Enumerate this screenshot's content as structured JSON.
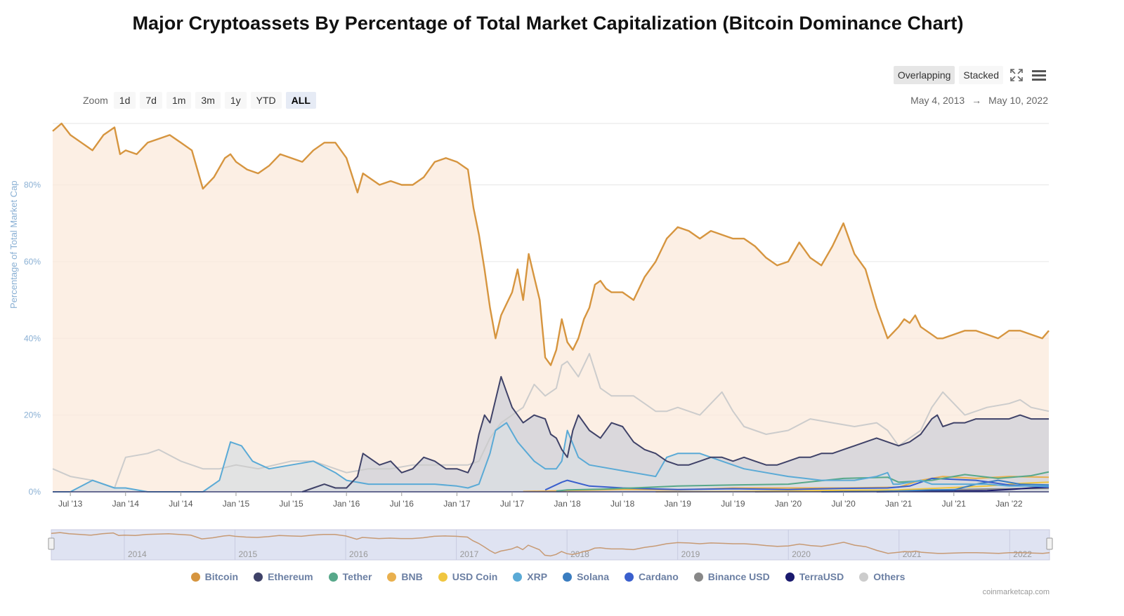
{
  "title": "Major Cryptoassets By Percentage of Total Market Capitalization (Bitcoin Dominance Chart)",
  "zoom": {
    "label": "Zoom",
    "buttons": [
      "1d",
      "7d",
      "1m",
      "3m",
      "1y",
      "YTD",
      "ALL"
    ],
    "active": "ALL"
  },
  "modes": {
    "overlapping": "Overlapping",
    "stacked": "Stacked",
    "active": "Overlapping"
  },
  "icons": {
    "fullscreen": "fullscreen-icon",
    "menu": "hamburger-menu-icon"
  },
  "range": {
    "from": "May 4, 2013",
    "arrow": "→",
    "to": "May 10, 2022"
  },
  "credit": "coinmarketcap.com",
  "chart_data": {
    "type": "area",
    "ylabel": "Percentage of Total Market Cap",
    "ylim": [
      0,
      100
    ],
    "yticks": [
      "0%",
      "20%",
      "40%",
      "60%",
      "80%"
    ],
    "ytick_values": [
      0,
      20,
      40,
      60,
      80
    ],
    "xlim": [
      2013.34,
      2022.36
    ],
    "xticks": [
      {
        "label": "Jul '13",
        "x": 2013.5
      },
      {
        "label": "Jan '14",
        "x": 2014.0
      },
      {
        "label": "Jul '14",
        "x": 2014.5
      },
      {
        "label": "Jan '15",
        "x": 2015.0
      },
      {
        "label": "Jul '15",
        "x": 2015.5
      },
      {
        "label": "Jan '16",
        "x": 2016.0
      },
      {
        "label": "Jul '16",
        "x": 2016.5
      },
      {
        "label": "Jan '17",
        "x": 2017.0
      },
      {
        "label": "Jul '17",
        "x": 2017.5
      },
      {
        "label": "Jan '18",
        "x": 2018.0
      },
      {
        "label": "Jul '18",
        "x": 2018.5
      },
      {
        "label": "Jan '19",
        "x": 2019.0
      },
      {
        "label": "Jul '19",
        "x": 2019.5
      },
      {
        "label": "Jan '20",
        "x": 2020.0
      },
      {
        "label": "Jul '20",
        "x": 2020.5
      },
      {
        "label": "Jan '21",
        "x": 2021.0
      },
      {
        "label": "Jul '21",
        "x": 2021.5
      },
      {
        "label": "Jan '22",
        "x": 2022.0
      }
    ],
    "navigator_labels": [
      {
        "label": "2014",
        "x": 2014.0
      },
      {
        "label": "2015",
        "x": 2015.0
      },
      {
        "label": "2016",
        "x": 2016.0
      },
      {
        "label": "2017",
        "x": 2017.0
      },
      {
        "label": "2018",
        "x": 2018.0
      },
      {
        "label": "2019",
        "x": 2019.0
      },
      {
        "label": "2020",
        "x": 2020.0
      },
      {
        "label": "2021",
        "x": 2021.0
      },
      {
        "label": "2022",
        "x": 2022.0
      }
    ],
    "grid": true,
    "legend_position": "bottom",
    "series": [
      {
        "name": "Bitcoin",
        "color": "#d6953f",
        "fill": "#fbeadb",
        "x": [
          2013.34,
          2013.42,
          2013.5,
          2013.6,
          2013.7,
          2013.8,
          2013.9,
          2013.95,
          2014.0,
          2014.1,
          2014.2,
          2014.3,
          2014.4,
          2014.5,
          2014.6,
          2014.7,
          2014.8,
          2014.9,
          2014.95,
          2015.0,
          2015.1,
          2015.2,
          2015.3,
          2015.4,
          2015.5,
          2015.6,
          2015.7,
          2015.8,
          2015.9,
          2016.0,
          2016.1,
          2016.15,
          2016.2,
          2016.3,
          2016.4,
          2016.5,
          2016.6,
          2016.7,
          2016.8,
          2016.9,
          2017.0,
          2017.1,
          2017.15,
          2017.2,
          2017.25,
          2017.3,
          2017.35,
          2017.4,
          2017.45,
          2017.5,
          2017.55,
          2017.6,
          2017.65,
          2017.7,
          2017.75,
          2017.8,
          2017.85,
          2017.9,
          2017.95,
          2018.0,
          2018.05,
          2018.1,
          2018.15,
          2018.2,
          2018.25,
          2018.3,
          2018.35,
          2018.4,
          2018.5,
          2018.6,
          2018.7,
          2018.8,
          2018.9,
          2019.0,
          2019.1,
          2019.2,
          2019.3,
          2019.4,
          2019.5,
          2019.6,
          2019.7,
          2019.8,
          2019.9,
          2020.0,
          2020.1,
          2020.2,
          2020.3,
          2020.4,
          2020.5,
          2020.6,
          2020.7,
          2020.8,
          2020.9,
          2021.0,
          2021.05,
          2021.1,
          2021.15,
          2021.2,
          2021.3,
          2021.35,
          2021.4,
          2021.5,
          2021.6,
          2021.7,
          2021.8,
          2021.9,
          2022.0,
          2022.1,
          2022.2,
          2022.3,
          2022.36
        ],
        "values": [
          94,
          96,
          93,
          91,
          89,
          93,
          95,
          88,
          89,
          88,
          91,
          92,
          93,
          91,
          89,
          79,
          82,
          87,
          88,
          86,
          84,
          83,
          85,
          88,
          87,
          86,
          89,
          91,
          91,
          87,
          78,
          83,
          82,
          80,
          81,
          80,
          80,
          82,
          86,
          87,
          86,
          84,
          74,
          67,
          58,
          48,
          40,
          46,
          49,
          52,
          58,
          50,
          62,
          56,
          50,
          35,
          33,
          37,
          45,
          39,
          37,
          40,
          45,
          48,
          54,
          55,
          53,
          52,
          52,
          50,
          56,
          60,
          66,
          69,
          68,
          66,
          68,
          67,
          66,
          66,
          64,
          61,
          59,
          60,
          65,
          61,
          59,
          64,
          70,
          62,
          58,
          48,
          40,
          43,
          45,
          44,
          46,
          43,
          41,
          40,
          40,
          41,
          42,
          42,
          41,
          40,
          42,
          42,
          41,
          40,
          42
        ]
      },
      {
        "name": "Ethereum",
        "color": "#3f4268",
        "fill": "#cfd0d9",
        "x": [
          2015.6,
          2015.7,
          2015.8,
          2015.9,
          2016.0,
          2016.1,
          2016.15,
          2016.2,
          2016.3,
          2016.4,
          2016.5,
          2016.6,
          2016.7,
          2016.8,
          2016.9,
          2017.0,
          2017.1,
          2017.15,
          2017.2,
          2017.25,
          2017.3,
          2017.35,
          2017.4,
          2017.45,
          2017.5,
          2017.55,
          2017.6,
          2017.7,
          2017.8,
          2017.85,
          2017.9,
          2017.95,
          2018.0,
          2018.05,
          2018.1,
          2018.2,
          2018.3,
          2018.4,
          2018.5,
          2018.6,
          2018.7,
          2018.8,
          2018.9,
          2019.0,
          2019.1,
          2019.2,
          2019.3,
          2019.4,
          2019.5,
          2019.6,
          2019.7,
          2019.8,
          2019.9,
          2020.0,
          2020.1,
          2020.2,
          2020.3,
          2020.4,
          2020.5,
          2020.6,
          2020.7,
          2020.8,
          2020.9,
          2021.0,
          2021.1,
          2021.2,
          2021.3,
          2021.35,
          2021.4,
          2021.5,
          2021.6,
          2021.7,
          2021.8,
          2021.9,
          2022.0,
          2022.1,
          2022.2,
          2022.3,
          2022.36
        ],
        "values": [
          0,
          1,
          2,
          1,
          1,
          4,
          10,
          9,
          7,
          8,
          5,
          6,
          9,
          8,
          6,
          6,
          5,
          8,
          15,
          20,
          18,
          24,
          30,
          26,
          22,
          20,
          18,
          20,
          19,
          15,
          14,
          11,
          9,
          16,
          20,
          16,
          14,
          18,
          17,
          13,
          11,
          10,
          8,
          7,
          7,
          8,
          9,
          9,
          8,
          9,
          8,
          7,
          7,
          8,
          9,
          9,
          10,
          10,
          11,
          12,
          13,
          14,
          13,
          12,
          13,
          15,
          19,
          20,
          17,
          18,
          18,
          19,
          19,
          19,
          19,
          20,
          19,
          19,
          19
        ]
      },
      {
        "name": "Tether",
        "color": "#57a88a",
        "fill": "none",
        "x": [
          2017.9,
          2018.0,
          2018.3,
          2018.6,
          2019.0,
          2019.5,
          2020.0,
          2020.5,
          2020.9,
          2021.0,
          2021.3,
          2021.6,
          2021.9,
          2022.2,
          2022.36
        ],
        "values": [
          0.2,
          0.5,
          0.7,
          1.0,
          1.5,
          1.8,
          2.0,
          3.5,
          3.8,
          2.5,
          3.0,
          4.5,
          3.5,
          4.2,
          5.2
        ]
      },
      {
        "name": "BNB",
        "color": "#e9b04e",
        "fill": "none",
        "x": [
          2017.6,
          2018.0,
          2018.5,
          2019.0,
          2019.5,
          2020.0,
          2020.5,
          2021.0,
          2021.2,
          2021.4,
          2021.7,
          2022.0,
          2022.36
        ],
        "values": [
          0.1,
          0.3,
          0.6,
          0.5,
          1.0,
          1.0,
          1.0,
          1.2,
          3.0,
          4.0,
          3.5,
          4.0,
          3.8
        ]
      },
      {
        "name": "USD Coin",
        "color": "#f0c640",
        "fill": "none",
        "x": [
          2018.8,
          2019.5,
          2020.0,
          2020.5,
          2021.0,
          2021.4,
          2021.8,
          2022.1,
          2022.36
        ],
        "values": [
          0.0,
          0.1,
          0.2,
          0.4,
          0.5,
          1.0,
          1.5,
          2.2,
          2.5
        ]
      },
      {
        "name": "XRP",
        "color": "#5aaad6",
        "fill": "#d9dfe3",
        "x": [
          2013.34,
          2013.5,
          2013.7,
          2013.9,
          2014.0,
          2014.2,
          2014.5,
          2014.7,
          2014.85,
          2014.95,
          2015.05,
          2015.15,
          2015.3,
          2015.5,
          2015.7,
          2015.9,
          2016.0,
          2016.2,
          2016.5,
          2016.8,
          2017.0,
          2017.1,
          2017.2,
          2017.3,
          2017.35,
          2017.45,
          2017.55,
          2017.7,
          2017.8,
          2017.9,
          2017.95,
          2018.0,
          2018.1,
          2018.2,
          2018.4,
          2018.6,
          2018.8,
          2018.9,
          2019.0,
          2019.2,
          2019.4,
          2019.6,
          2019.8,
          2020.0,
          2020.3,
          2020.6,
          2020.8,
          2020.9,
          2020.95,
          2021.0,
          2021.2,
          2021.3,
          2021.5,
          2021.8,
          2022.0,
          2022.36
        ],
        "values": [
          0,
          0,
          3,
          1,
          1,
          0,
          0,
          0,
          3,
          13,
          12,
          8,
          6,
          7,
          8,
          5,
          3,
          2,
          2,
          2,
          1.5,
          1,
          2,
          10,
          16,
          18,
          13,
          8,
          6,
          6,
          8,
          16,
          9,
          7,
          6,
          5,
          4,
          9,
          10,
          10,
          8,
          6,
          5,
          4,
          3,
          3,
          4,
          5,
          2,
          2,
          3,
          2,
          2,
          2,
          1.5,
          1.5
        ]
      },
      {
        "name": "Solana",
        "color": "#3a7dc0",
        "fill": "none",
        "x": [
          2020.3,
          2020.8,
          2021.0,
          2021.3,
          2021.5,
          2021.7,
          2021.9,
          2022.1,
          2022.36
        ],
        "values": [
          0.0,
          0.1,
          0.2,
          0.5,
          0.5,
          2.0,
          3.0,
          2.0,
          1.8
        ]
      },
      {
        "name": "Cardano",
        "color": "#3a5fcd",
        "fill": "none",
        "x": [
          2017.8,
          2017.95,
          2018.0,
          2018.2,
          2018.5,
          2019.0,
          2019.5,
          2020.0,
          2020.5,
          2020.9,
          2021.1,
          2021.3,
          2021.7,
          2022.0,
          2022.36
        ],
        "values": [
          0.5,
          2.5,
          3.0,
          1.5,
          1.0,
          0.6,
          0.8,
          0.6,
          0.9,
          1.0,
          1.5,
          3.5,
          3.0,
          1.8,
          1.2
        ]
      },
      {
        "name": "Binance USD",
        "color": "#888888",
        "fill": "none",
        "x": [
          2019.7,
          2020.0,
          2020.5,
          2021.0,
          2021.5,
          2022.0,
          2022.36
        ],
        "values": [
          0.0,
          0.1,
          0.1,
          0.2,
          0.6,
          0.8,
          0.9
        ]
      },
      {
        "name": "TerraUSD",
        "color": "#1a1a6e",
        "fill": "none",
        "x": [
          2020.8,
          2021.0,
          2021.5,
          2021.8,
          2022.0,
          2022.2,
          2022.36
        ],
        "values": [
          0.0,
          0.1,
          0.2,
          0.3,
          0.6,
          1.0,
          1.2
        ]
      },
      {
        "name": "Others",
        "color": "#cccccc",
        "fill": "none",
        "x": [
          2013.34,
          2013.5,
          2013.7,
          2013.9,
          2014.0,
          2014.2,
          2014.3,
          2014.5,
          2014.7,
          2014.85,
          2015.0,
          2015.2,
          2015.5,
          2015.7,
          2015.9,
          2016.0,
          2016.2,
          2016.4,
          2016.6,
          2016.8,
          2017.0,
          2017.1,
          2017.2,
          2017.3,
          2017.4,
          2017.5,
          2017.6,
          2017.7,
          2017.8,
          2017.9,
          2017.95,
          2018.0,
          2018.1,
          2018.2,
          2018.3,
          2018.4,
          2018.5,
          2018.6,
          2018.7,
          2018.8,
          2018.9,
          2019.0,
          2019.2,
          2019.4,
          2019.5,
          2019.6,
          2019.8,
          2020.0,
          2020.2,
          2020.4,
          2020.6,
          2020.8,
          2020.9,
          2021.0,
          2021.1,
          2021.2,
          2021.3,
          2021.4,
          2021.6,
          2021.8,
          2022.0,
          2022.1,
          2022.2,
          2022.36
        ],
        "values": [
          6,
          4,
          3,
          1,
          9,
          10,
          11,
          8,
          6,
          6,
          7,
          6,
          8,
          8,
          6,
          5,
          6,
          6,
          7,
          7,
          7,
          7,
          8,
          14,
          18,
          20,
          22,
          28,
          25,
          27,
          33,
          34,
          30,
          36,
          27,
          25,
          25,
          25,
          23,
          21,
          21,
          22,
          20,
          26,
          21,
          17,
          15,
          16,
          19,
          18,
          17,
          18,
          16,
          12,
          14,
          16,
          22,
          26,
          20,
          22,
          23,
          24,
          22,
          21
        ]
      }
    ]
  }
}
